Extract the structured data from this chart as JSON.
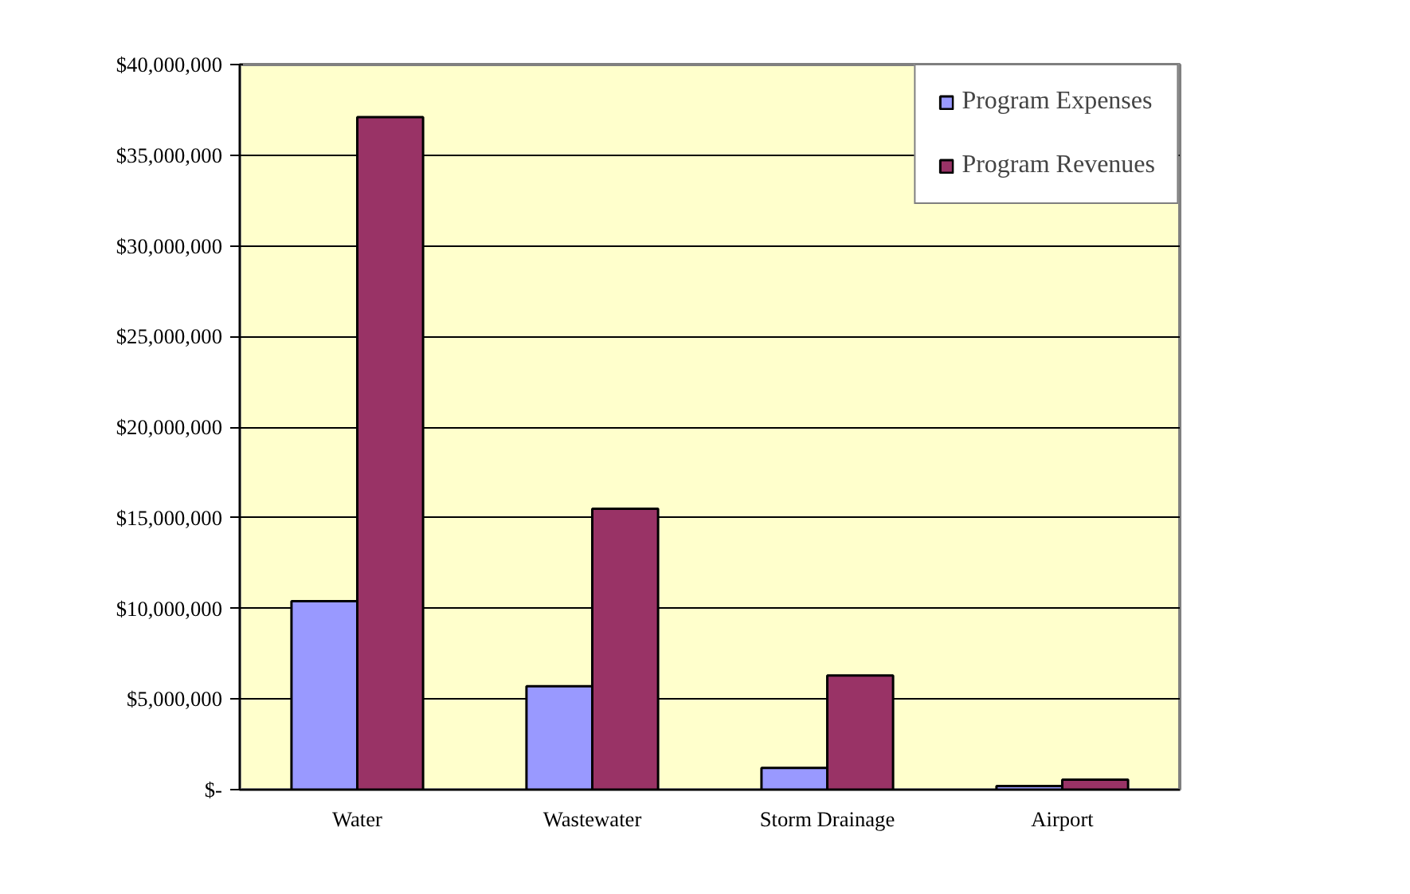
{
  "chart_data": {
    "type": "bar",
    "categories": [
      "Water",
      "Wastewater",
      "Storm Drainage",
      "Airport"
    ],
    "series": [
      {
        "name": "Program Expenses",
        "color": "#9999ff",
        "values": [
          10400000,
          5700000,
          1200000,
          200000
        ]
      },
      {
        "name": "Program Revenues",
        "color": "#993366",
        "values": [
          37100000,
          15500000,
          6300000,
          550000
        ]
      }
    ],
    "ylim": [
      0,
      40000000
    ],
    "yticks": [
      {
        "value": 0,
        "label": "$-"
      },
      {
        "value": 5000000,
        "label": "$5,000,000"
      },
      {
        "value": 10000000,
        "label": "$10,000,000"
      },
      {
        "value": 15000000,
        "label": "$15,000,000"
      },
      {
        "value": 20000000,
        "label": "$20,000,000"
      },
      {
        "value": 25000000,
        "label": "$25,000,000"
      },
      {
        "value": 30000000,
        "label": "$30,000,000"
      },
      {
        "value": 35000000,
        "label": "$35,000,000"
      },
      {
        "value": 40000000,
        "label": "$40,000,000"
      }
    ],
    "grid": "y",
    "legend": "top right"
  }
}
